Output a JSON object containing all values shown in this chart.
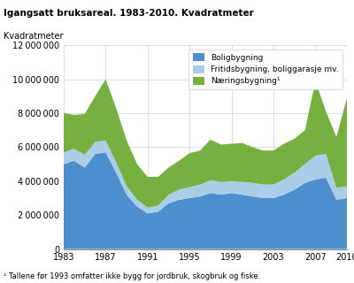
{
  "title": "Igangsatt bruksareal. 1983-2010. Kvadratmeter",
  "ylabel": "Kvadratmeter",
  "footnote": "¹ Tallene før 1993 omfatter ikke bygg for jordbruk, skogbruk og fiske.",
  "years": [
    1983,
    1984,
    1985,
    1986,
    1987,
    1988,
    1989,
    1990,
    1991,
    1992,
    1993,
    1994,
    1995,
    1996,
    1997,
    1998,
    1999,
    2000,
    2001,
    2002,
    2003,
    2004,
    2005,
    2006,
    2007,
    2008,
    2009,
    2010
  ],
  "boligbygning": [
    5000000,
    5200000,
    4800000,
    5600000,
    5700000,
    4500000,
    3200000,
    2500000,
    2100000,
    2200000,
    2700000,
    2900000,
    3000000,
    3100000,
    3300000,
    3200000,
    3300000,
    3200000,
    3100000,
    3000000,
    3000000,
    3200000,
    3500000,
    3900000,
    4100000,
    4200000,
    2900000,
    3000000
  ],
  "fritidsbygning": [
    700000,
    700000,
    750000,
    700000,
    700000,
    600000,
    500000,
    400000,
    350000,
    350000,
    500000,
    600000,
    650000,
    700000,
    750000,
    750000,
    700000,
    750000,
    800000,
    800000,
    800000,
    900000,
    1000000,
    1100000,
    1400000,
    1400000,
    700000,
    700000
  ],
  "naeringsbygning": [
    2300000,
    2000000,
    2400000,
    2700000,
    3600000,
    3200000,
    2700000,
    2100000,
    1800000,
    1700000,
    1600000,
    1700000,
    2000000,
    2000000,
    2400000,
    2200000,
    2200000,
    2300000,
    2100000,
    2000000,
    2000000,
    2100000,
    2000000,
    2000000,
    4400000,
    2500000,
    3000000,
    5200000
  ],
  "color_bolig": "#4d8fcc",
  "color_fritid": "#aacde8",
  "color_naering": "#76b041",
  "legend_labels": [
    "Boligbygning",
    "Fritidsbygning, boliggarasje mv.",
    "Næringsbygning¹"
  ],
  "ylim": [
    0,
    12000000
  ],
  "yticks": [
    0,
    2000000,
    4000000,
    6000000,
    8000000,
    10000000,
    12000000
  ],
  "xticks": [
    1983,
    1987,
    1991,
    1995,
    1999,
    2003,
    2007,
    2010
  ],
  "bg_color": "#ffffff",
  "grid_color": "#d0d0d0"
}
